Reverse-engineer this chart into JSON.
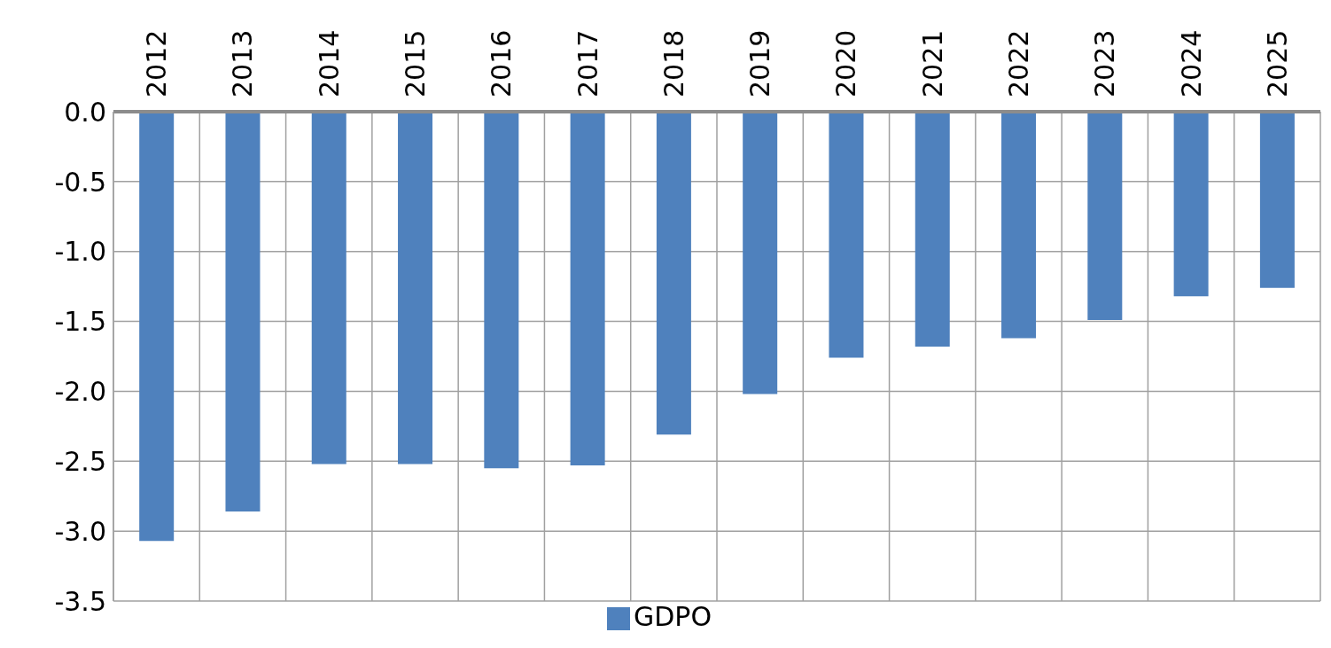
{
  "chart_data": {
    "type": "bar",
    "categories": [
      "2012",
      "2013",
      "2014",
      "2015",
      "2016",
      "2017",
      "2018",
      "2019",
      "2020",
      "2021",
      "2022",
      "2023",
      "2024",
      "2025"
    ],
    "series": [
      {
        "name": "GDPO",
        "color": "#4f81bd",
        "values": [
          -3.07,
          -2.86,
          -2.52,
          -2.52,
          -2.55,
          -2.53,
          -2.31,
          -2.02,
          -1.76,
          -1.68,
          -1.62,
          -1.49,
          -1.32,
          -1.26
        ]
      }
    ],
    "ylim": [
      -3.5,
      0
    ],
    "yticks": [
      {
        "value": 0,
        "label": "0.0"
      },
      {
        "value": -0.5,
        "label": "-0.5"
      },
      {
        "value": -1,
        "label": "-1.0"
      },
      {
        "value": -1.5,
        "label": "-1.5"
      },
      {
        "value": -2,
        "label": "-2.0"
      },
      {
        "value": -2.5,
        "label": "-2.5"
      },
      {
        "value": -3,
        "label": "-3.0"
      },
      {
        "value": -3.5,
        "label": "-3.5"
      }
    ],
    "grid": true,
    "legend": "bottom"
  }
}
